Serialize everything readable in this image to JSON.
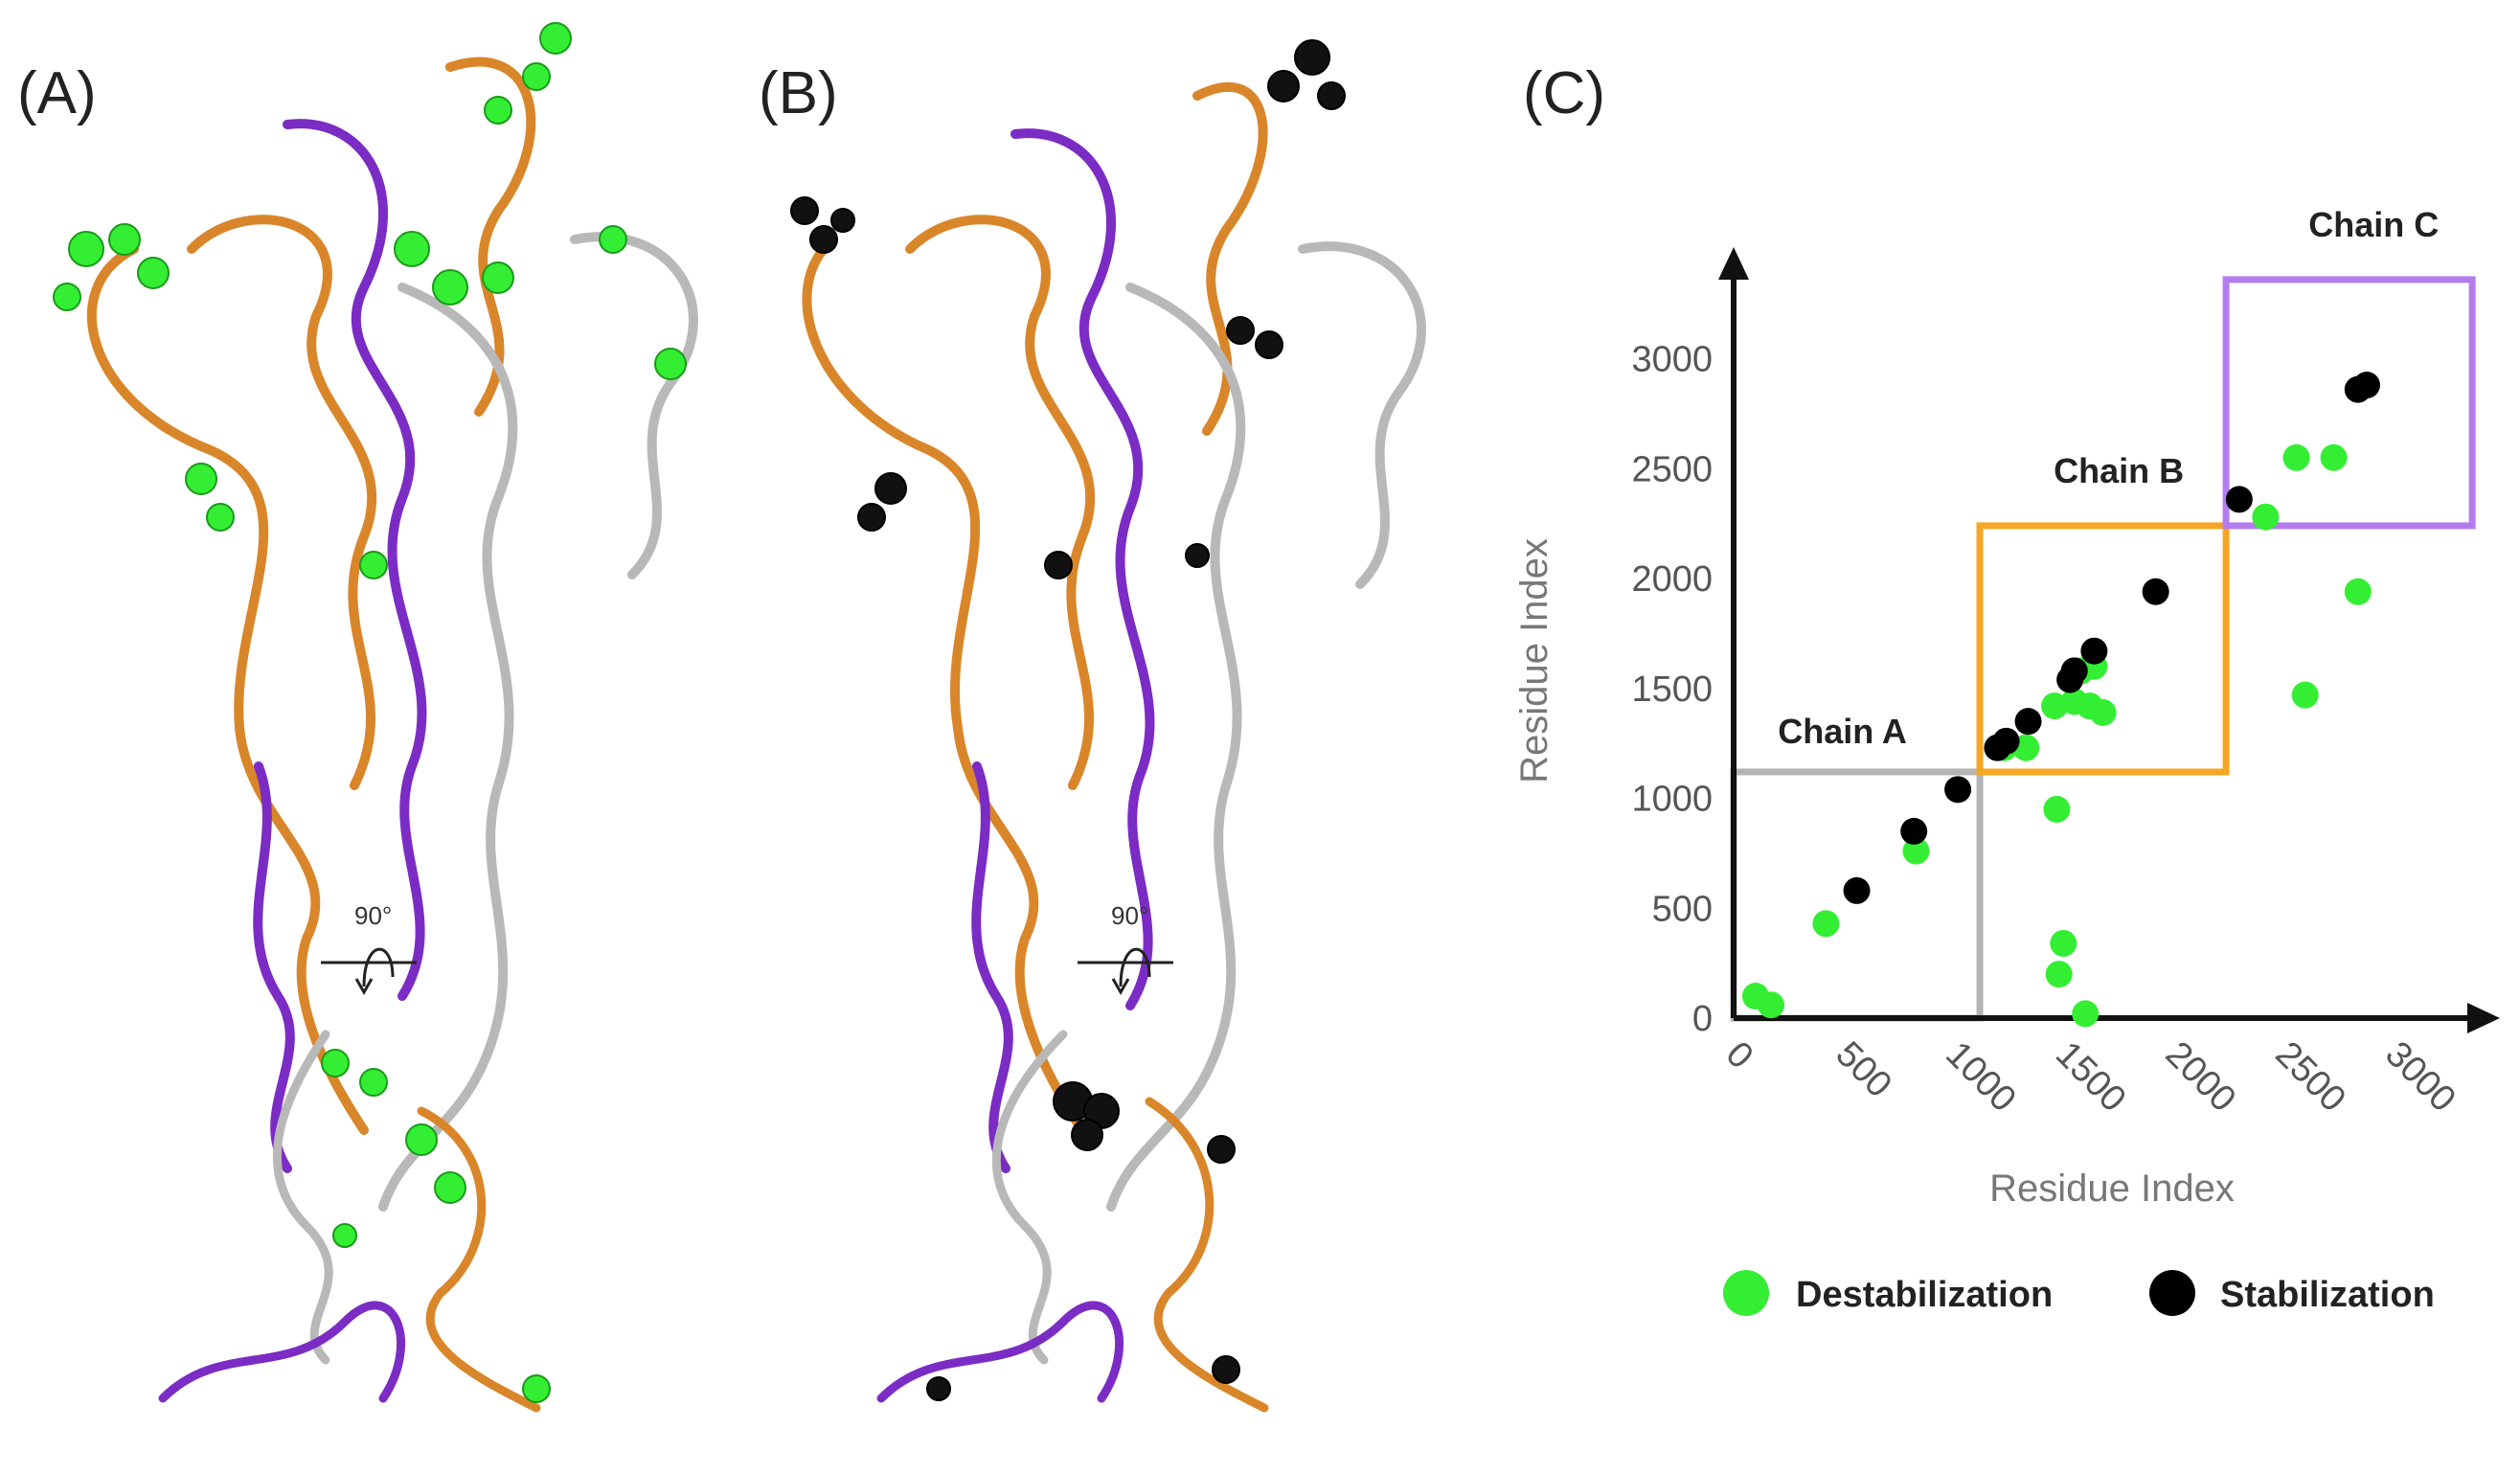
{
  "panels": {
    "a_label": "(A)",
    "b_label": "(B)",
    "c_label": "(C)",
    "rotation_label": "90°"
  },
  "colors": {
    "chain_a": "#b4b4b4",
    "chain_b": "#f5a623",
    "chain_c": "#b57cf0",
    "destabilization": "#33ee33",
    "stabilization": "#000000",
    "ribbon_orange": "#d9862a",
    "ribbon_purple": "#7b2cc4",
    "ribbon_gray": "#b8b8b8"
  },
  "chart_data": {
    "type": "scatter",
    "xlabel": "Residue Index",
    "ylabel": "Residue Index",
    "xlim": [
      0,
      3300
    ],
    "ylim": [
      0,
      3300
    ],
    "x_ticks": [
      0,
      500,
      1000,
      1500,
      2000,
      2500,
      3000
    ],
    "y_ticks": [
      0,
      500,
      1000,
      1500,
      2000,
      2500,
      3000
    ],
    "regions": [
      {
        "name": "Chain A",
        "x": [
          0,
          1120
        ],
        "y": [
          0,
          1120
        ],
        "color": "#b4b4b4"
      },
      {
        "name": "Chain B",
        "x": [
          1120,
          2240
        ],
        "y": [
          1120,
          2240
        ],
        "color": "#f5a623"
      },
      {
        "name": "Chain C",
        "x": [
          2240,
          3360
        ],
        "y": [
          2240,
          3360
        ],
        "color": "#b57cf0"
      }
    ],
    "series": [
      {
        "name": "Destabilization",
        "color": "#33ee33",
        "points": [
          [
            100,
            100
          ],
          [
            170,
            60
          ],
          [
            420,
            430
          ],
          [
            830,
            760
          ],
          [
            1230,
            1230
          ],
          [
            1330,
            1230
          ],
          [
            1460,
            1420
          ],
          [
            1550,
            1440
          ],
          [
            1620,
            1420
          ],
          [
            1680,
            1390
          ],
          [
            1470,
            950
          ],
          [
            1500,
            340
          ],
          [
            1480,
            200
          ],
          [
            1600,
            20
          ],
          [
            1580,
            1580
          ],
          [
            1640,
            1600
          ],
          [
            2420,
            2280
          ],
          [
            2560,
            2550
          ],
          [
            2730,
            2550
          ],
          [
            2840,
            1940
          ],
          [
            2600,
            1470
          ]
        ]
      },
      {
        "name": "Stabilization",
        "color": "#000000",
        "points": [
          [
            560,
            580
          ],
          [
            820,
            850
          ],
          [
            1020,
            1040
          ],
          [
            1200,
            1230
          ],
          [
            1240,
            1260
          ],
          [
            1340,
            1350
          ],
          [
            1530,
            1540
          ],
          [
            1550,
            1580
          ],
          [
            1640,
            1670
          ],
          [
            1920,
            1940
          ],
          [
            2300,
            2360
          ],
          [
            2840,
            2860
          ],
          [
            2880,
            2880
          ]
        ]
      }
    ],
    "legend": {
      "placement": "bottom",
      "entries": [
        {
          "name": "Destabilization",
          "color": "#33ee33"
        },
        {
          "name": "Stabilization",
          "color": "#000000"
        }
      ]
    }
  }
}
